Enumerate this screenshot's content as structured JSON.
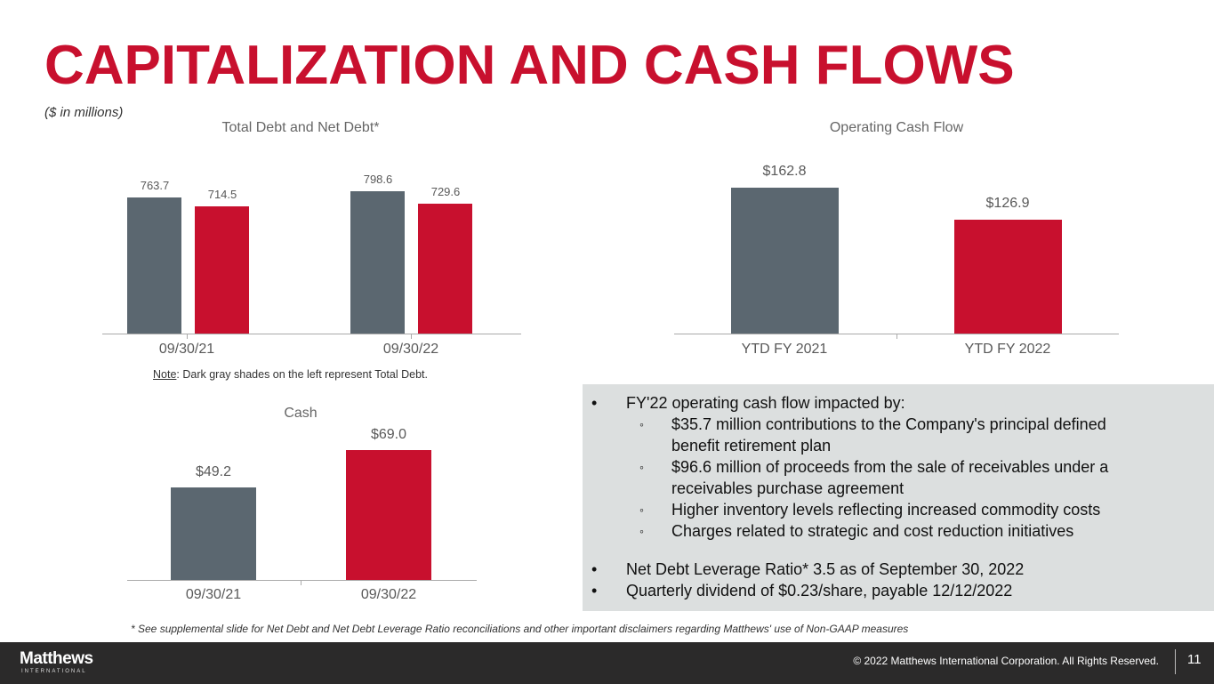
{
  "title": "CAPITALIZATION AND CASH FLOWS",
  "units": "($ in millions)",
  "colors": {
    "accent": "#c8102e",
    "gray": "#5b6770"
  },
  "chart_data": [
    {
      "type": "bar",
      "title": "Total Debt and Net Debt*",
      "categories": [
        "09/30/21",
        "09/30/22"
      ],
      "series": [
        {
          "name": "Total Debt",
          "values": [
            763.7,
            798.6
          ],
          "labels": [
            "763.7",
            "798.6"
          ]
        },
        {
          "name": "Net Debt",
          "values": [
            714.5,
            729.6
          ],
          "labels": [
            "714.5",
            "729.6"
          ]
        }
      ]
    },
    {
      "type": "bar",
      "title": "Operating Cash Flow",
      "categories": [
        "YTD FY 2021",
        "YTD FY 2022"
      ],
      "values": [
        162.8,
        126.9
      ],
      "labels": [
        "$162.8",
        "$126.9"
      ]
    },
    {
      "type": "bar",
      "title": "Cash",
      "categories": [
        "09/30/21",
        "09/30/22"
      ],
      "values": [
        49.2,
        69.0
      ],
      "labels": [
        "$49.2",
        "$69.0"
      ]
    }
  ],
  "note": {
    "prefix": "Note",
    "text": ": Dark gray shades on the left represent Total Debt."
  },
  "box": {
    "b1": "FY'22 operating cash flow impacted by:",
    "subs": [
      "$35.7 million contributions to the Company's principal defined",
      "benefit retirement plan",
      "$96.6 million of proceeds from the sale of receivables under a",
      "receivables purchase agreement",
      "Higher inventory levels reflecting increased commodity costs",
      "Charges related to strategic and cost reduction initiatives"
    ],
    "b2": "Net Debt Leverage Ratio* 3.5 as of September 30, 2022",
    "b3": "Quarterly dividend of $0.23/share, payable 12/12/2022",
    "bullet": "•",
    "sub_bullet": "◦"
  },
  "footnote": "* See supplemental slide for Net Debt and Net Debt Leverage Ratio reconciliations and other important disclaimers regarding Matthews' use of Non-GAAP measures",
  "footer": {
    "logo": "Matthews",
    "logo_sub": "INTERNATIONAL",
    "copyright": "© 2022 Matthews International Corporation. All Rights Reserved.",
    "page": "11"
  }
}
